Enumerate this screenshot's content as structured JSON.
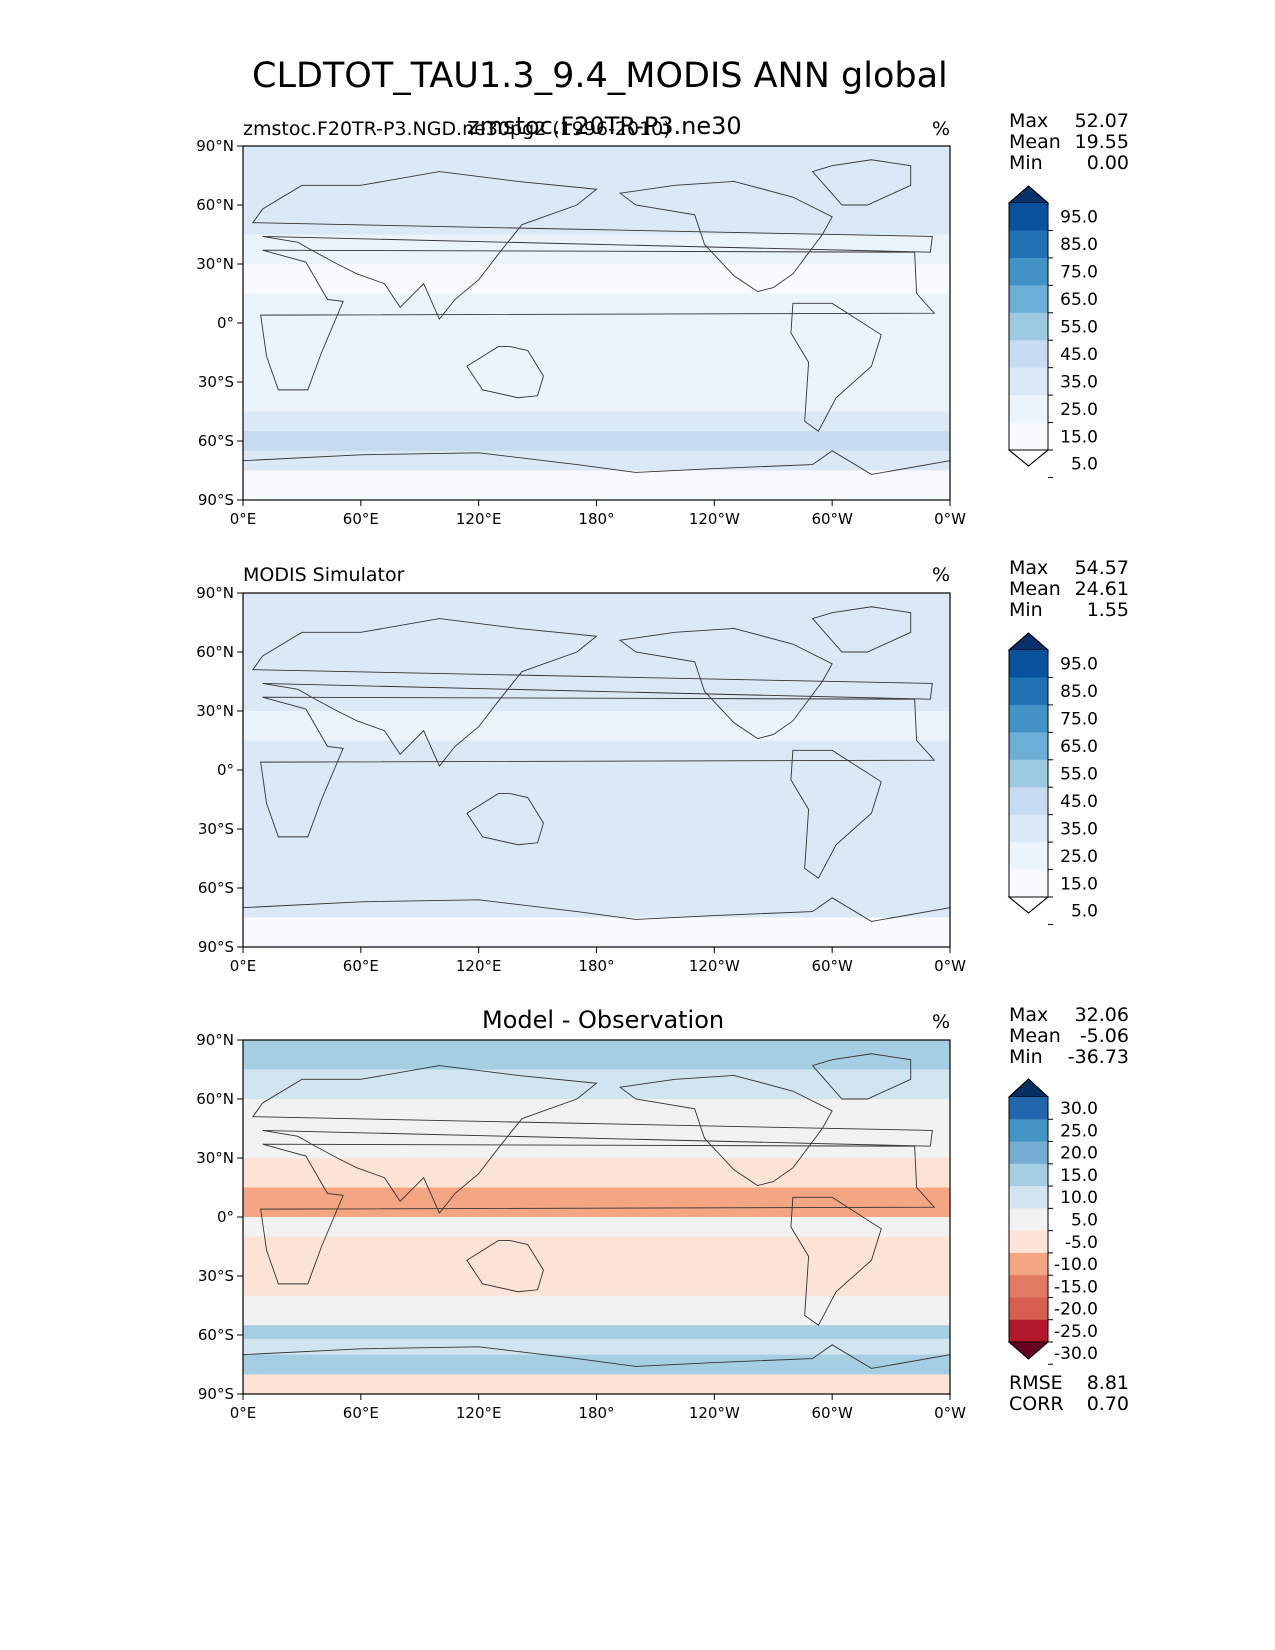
{
  "figure": {
    "title": "CLDTOT_TAU1.3_9.4_MODIS ANN global"
  },
  "chart_data": [
    {
      "type": "heatmap",
      "title": "zmstoc.F20TR-P3.ne30",
      "left_label": "zmstoc.F20TR-P3.NGD.ne30pg2 (1996-2010)",
      "units": "%",
      "xlabel": "",
      "ylabel": "",
      "xlim": [
        0,
        360
      ],
      "ylim": [
        -90,
        90
      ],
      "x_ticks": [
        "0°E",
        "60°E",
        "120°E",
        "180°",
        "120°W",
        "60°W",
        "0°W"
      ],
      "y_ticks": [
        "90°N",
        "60°N",
        "30°N",
        "0°",
        "30°S",
        "60°S",
        "90°S"
      ],
      "stats": [
        {
          "label": "Max",
          "value": "52.07"
        },
        {
          "label": "Mean",
          "value": "19.55"
        },
        {
          "label": "Min",
          "value": "0.00"
        }
      ],
      "colorbar": {
        "ticks": [
          "95.0",
          "85.0",
          "75.0",
          "65.0",
          "55.0",
          "45.0",
          "35.0",
          "25.0",
          "15.0",
          "5.0"
        ],
        "colors": [
          "#08306b",
          "#08519c",
          "#2171b5",
          "#4292c6",
          "#6baed6",
          "#9ecae1",
          "#c6dbef",
          "#dbe9f6",
          "#ebf3fb",
          "#f7fbff",
          "#ffffff"
        ]
      },
      "zonal_profile": [
        {
          "lat": 90,
          "value": 30
        },
        {
          "lat": 75,
          "value": 30
        },
        {
          "lat": 60,
          "value": 25
        },
        {
          "lat": 45,
          "value": 22
        },
        {
          "lat": 30,
          "value": 14
        },
        {
          "lat": 15,
          "value": 15
        },
        {
          "lat": 0,
          "value": 16
        },
        {
          "lat": -15,
          "value": 16
        },
        {
          "lat": -30,
          "value": 22
        },
        {
          "lat": -45,
          "value": 30
        },
        {
          "lat": -55,
          "value": 40
        },
        {
          "lat": -65,
          "value": 32
        },
        {
          "lat": -75,
          "value": 8
        },
        {
          "lat": -90,
          "value": 3
        }
      ]
    },
    {
      "type": "heatmap",
      "title": "",
      "left_label": "MODIS Simulator",
      "units": "%",
      "xlabel": "",
      "ylabel": "",
      "xlim": [
        0,
        360
      ],
      "ylim": [
        -90,
        90
      ],
      "x_ticks": [
        "0°E",
        "60°E",
        "120°E",
        "180°",
        "120°W",
        "60°W",
        "0°W"
      ],
      "y_ticks": [
        "90°N",
        "60°N",
        "30°N",
        "0°",
        "30°S",
        "60°S",
        "90°S"
      ],
      "stats": [
        {
          "label": "Max",
          "value": "54.57"
        },
        {
          "label": "Mean",
          "value": "24.61"
        },
        {
          "label": "Min",
          "value": "1.55"
        }
      ],
      "colorbar": {
        "ticks": [
          "95.0",
          "85.0",
          "75.0",
          "65.0",
          "55.0",
          "45.0",
          "35.0",
          "25.0",
          "15.0",
          "5.0"
        ],
        "colors": [
          "#08306b",
          "#08519c",
          "#2171b5",
          "#4292c6",
          "#6baed6",
          "#9ecae1",
          "#c6dbef",
          "#dbe9f6",
          "#ebf3fb",
          "#f7fbff",
          "#ffffff"
        ]
      },
      "zonal_profile": [
        {
          "lat": 90,
          "value": 30
        },
        {
          "lat": 75,
          "value": 28
        },
        {
          "lat": 60,
          "value": 26
        },
        {
          "lat": 45,
          "value": 27
        },
        {
          "lat": 30,
          "value": 22
        },
        {
          "lat": 15,
          "value": 25
        },
        {
          "lat": 0,
          "value": 30
        },
        {
          "lat": -15,
          "value": 25
        },
        {
          "lat": -30,
          "value": 26
        },
        {
          "lat": -45,
          "value": 30
        },
        {
          "lat": -55,
          "value": 32
        },
        {
          "lat": -65,
          "value": 28
        },
        {
          "lat": -75,
          "value": 14
        },
        {
          "lat": -90,
          "value": 12
        }
      ]
    },
    {
      "type": "heatmap",
      "title": "Model - Observation",
      "left_label": "",
      "units": "%",
      "xlabel": "",
      "ylabel": "",
      "xlim": [
        0,
        360
      ],
      "ylim": [
        -90,
        90
      ],
      "x_ticks": [
        "0°E",
        "60°E",
        "120°E",
        "180°",
        "120°W",
        "60°W",
        "0°W"
      ],
      "y_ticks": [
        "90°N",
        "60°N",
        "30°N",
        "0°",
        "30°S",
        "60°S",
        "90°S"
      ],
      "stats": [
        {
          "label": "Max",
          "value": "32.06"
        },
        {
          "label": "Mean",
          "value": "-5.06"
        },
        {
          "label": "Min",
          "value": "-36.73"
        }
      ],
      "extra_stats": [
        {
          "label": "RMSE",
          "value": "8.81"
        },
        {
          "label": "CORR",
          "value": "0.70"
        }
      ],
      "colorbar": {
        "ticks": [
          "30.0",
          "25.0",
          "20.0",
          "15.0",
          "10.0",
          "5.0",
          "-5.0",
          "-10.0",
          "-15.0",
          "-20.0",
          "-25.0",
          "-30.0"
        ],
        "colors": [
          "#053061",
          "#2166ac",
          "#4393c3",
          "#74add1",
          "#a6cee3",
          "#d1e5f0",
          "#f2f2f2",
          "#fbe3d6",
          "#f4a582",
          "#e07a61",
          "#d6604d",
          "#b2182b",
          "#67001f"
        ]
      },
      "zonal_profile": [
        {
          "lat": 90,
          "value": 10
        },
        {
          "lat": 75,
          "value": 8
        },
        {
          "lat": 60,
          "value": 0
        },
        {
          "lat": 45,
          "value": -3
        },
        {
          "lat": 30,
          "value": -8
        },
        {
          "lat": 15,
          "value": -12
        },
        {
          "lat": 5,
          "value": -14
        },
        {
          "lat": 0,
          "value": -3
        },
        {
          "lat": -10,
          "value": -10
        },
        {
          "lat": -25,
          "value": -8
        },
        {
          "lat": -40,
          "value": -2
        },
        {
          "lat": -55,
          "value": 10
        },
        {
          "lat": -62,
          "value": 6
        },
        {
          "lat": -70,
          "value": 12
        },
        {
          "lat": -80,
          "value": -8
        },
        {
          "lat": -90,
          "value": -10
        }
      ]
    }
  ]
}
